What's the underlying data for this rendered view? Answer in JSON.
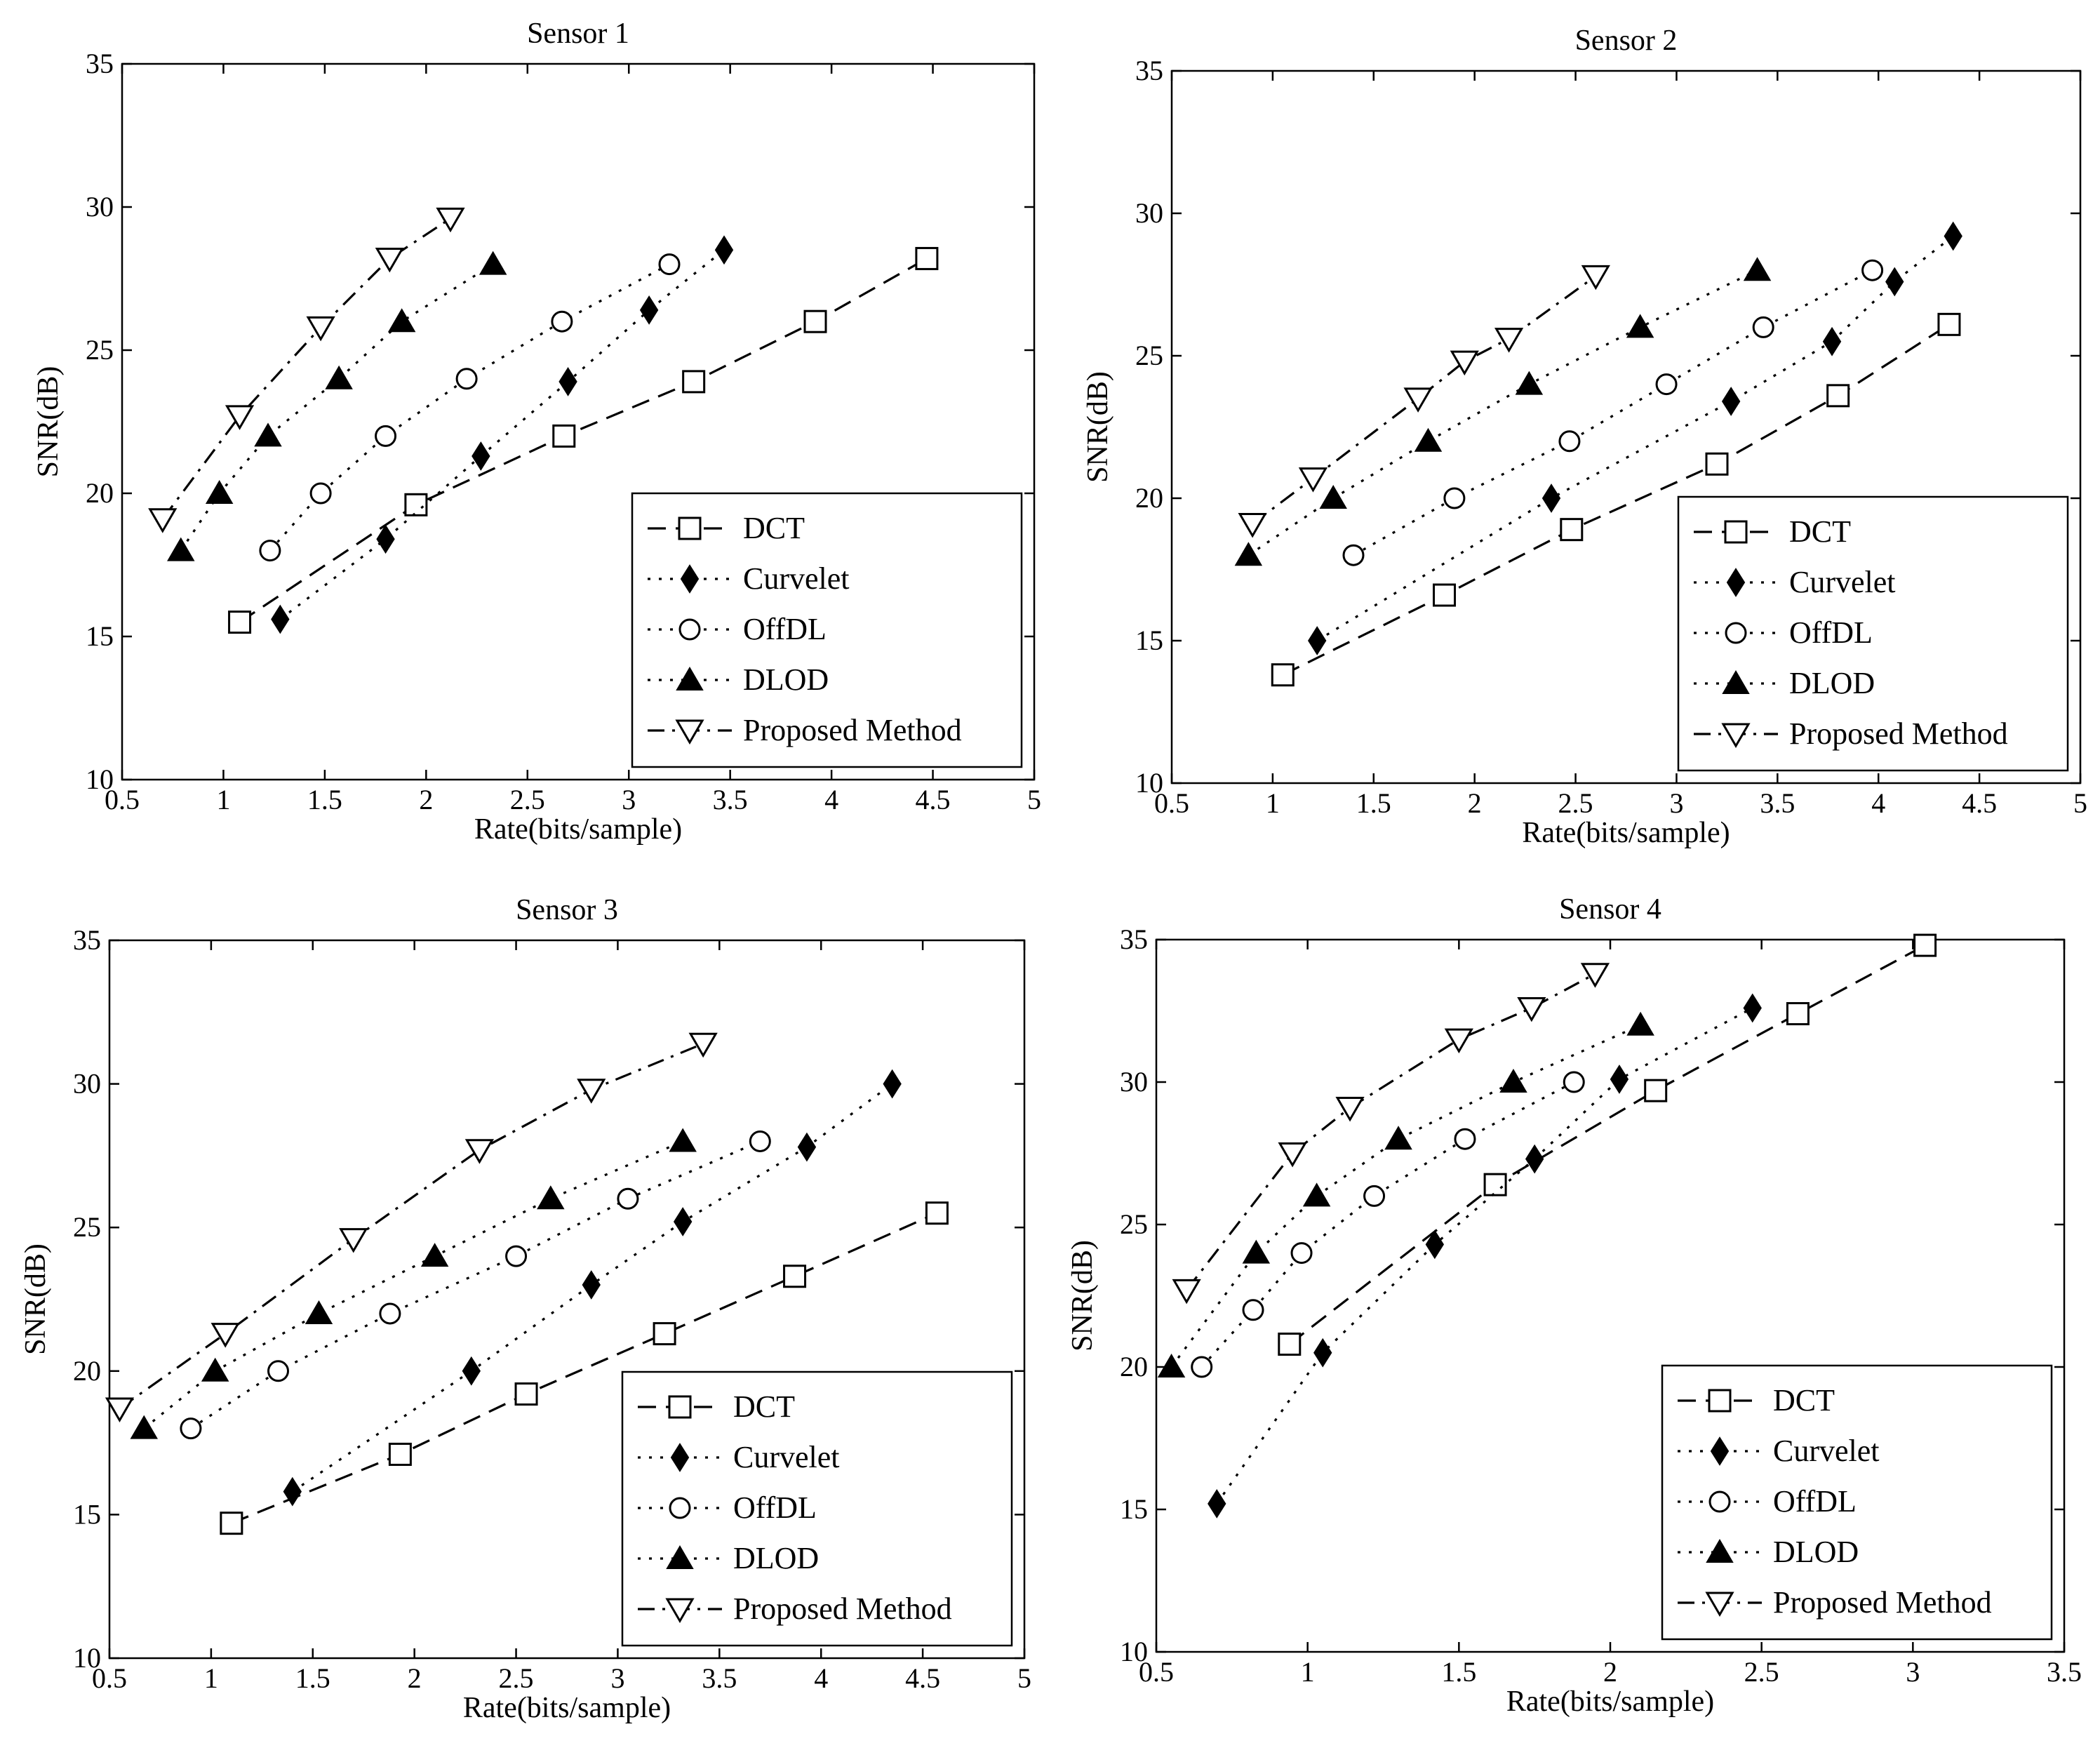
{
  "figure": {
    "layout": "2x2 grid of line charts"
  },
  "chart_data": [
    {
      "type": "line",
      "title": "Sensor 1",
      "xlabel": "Rate(bits/sample)",
      "ylabel": "SNR(dB)",
      "xlim": [
        0.5,
        5
      ],
      "ylim": [
        10,
        35
      ],
      "xticks": [
        0.5,
        1,
        1.5,
        2,
        2.5,
        3,
        3.5,
        4,
        4.5,
        5
      ],
      "xtick_labels": [
        "0.5",
        "1",
        "1.5",
        "2",
        "2.5",
        "3",
        "3.5",
        "4",
        "4.5",
        "5"
      ],
      "yticks": [
        10,
        15,
        20,
        25,
        30,
        35
      ],
      "ytick_labels": [
        "10",
        "15",
        "20",
        "25",
        "30",
        "35"
      ],
      "legend_position": "bottom-right",
      "series": [
        {
          "name": "DCT",
          "marker": "square",
          "line": "dash",
          "x": [
            1.08,
            1.95,
            2.68,
            3.32,
            3.92,
            4.47
          ],
          "y": [
            15.5,
            19.6,
            22.0,
            23.9,
            26.0,
            28.2
          ]
        },
        {
          "name": "Curvelet",
          "marker": "diamond-filled",
          "line": "dot",
          "x": [
            1.28,
            1.8,
            2.27,
            2.7,
            3.1,
            3.47
          ],
          "y": [
            15.6,
            18.4,
            21.3,
            23.9,
            26.4,
            28.5
          ]
        },
        {
          "name": "OffDL",
          "marker": "circle",
          "line": "dot",
          "x": [
            1.23,
            1.48,
            1.8,
            2.2,
            2.67,
            3.2
          ],
          "y": [
            18.0,
            20.0,
            22.0,
            24.0,
            26.0,
            28.0
          ]
        },
        {
          "name": "DLOD",
          "marker": "triangle-up-filled",
          "line": "dot",
          "x": [
            0.79,
            0.98,
            1.22,
            1.57,
            1.88,
            2.33
          ],
          "y": [
            18.0,
            20.0,
            22.0,
            24.0,
            26.0,
            28.0
          ]
        },
        {
          "name": "Proposed Method",
          "marker": "triangle-down",
          "line": "dashdot",
          "x": [
            0.7,
            1.08,
            1.48,
            1.82,
            2.12
          ],
          "y": [
            19.1,
            22.7,
            25.8,
            28.2,
            29.6
          ]
        }
      ]
    },
    {
      "type": "line",
      "title": "Sensor 2",
      "xlabel": "Rate(bits/sample)",
      "ylabel": "SNR(dB)",
      "xlim": [
        0.5,
        5
      ],
      "ylim": [
        10,
        35
      ],
      "xticks": [
        0.5,
        1,
        1.5,
        2,
        2.5,
        3,
        3.5,
        4,
        4.5,
        5
      ],
      "xtick_labels": [
        "0.5",
        "1",
        "1.5",
        "2",
        "2.5",
        "3",
        "3.5",
        "4",
        "4.5",
        "5"
      ],
      "yticks": [
        10,
        15,
        20,
        25,
        30,
        35
      ],
      "ytick_labels": [
        "10",
        "15",
        "20",
        "25",
        "30",
        "35"
      ],
      "legend_position": "bottom-right",
      "series": [
        {
          "name": "DCT",
          "marker": "square",
          "line": "dash",
          "x": [
            1.05,
            1.85,
            2.48,
            3.2,
            3.8,
            4.35
          ],
          "y": [
            13.8,
            16.6,
            18.9,
            21.2,
            23.6,
            26.1
          ]
        },
        {
          "name": "Curvelet",
          "marker": "diamond-filled",
          "line": "dot",
          "x": [
            1.22,
            2.38,
            3.27,
            3.77,
            4.08,
            4.37
          ],
          "y": [
            15.0,
            20.0,
            23.4,
            25.5,
            27.6,
            29.2
          ]
        },
        {
          "name": "OffDL",
          "marker": "circle",
          "line": "dot",
          "x": [
            1.4,
            1.9,
            2.47,
            2.95,
            3.43,
            3.97
          ],
          "y": [
            18.0,
            20.0,
            22.0,
            24.0,
            26.0,
            28.0
          ]
        },
        {
          "name": "DLOD",
          "marker": "triangle-up-filled",
          "line": "dot",
          "x": [
            0.88,
            1.3,
            1.77,
            2.27,
            2.82,
            3.4
          ],
          "y": [
            18.0,
            20.0,
            22.0,
            24.0,
            26.0,
            28.0
          ]
        },
        {
          "name": "Proposed Method",
          "marker": "triangle-down",
          "line": "dashdot",
          "x": [
            0.9,
            1.2,
            1.72,
            1.95,
            2.17,
            2.6
          ],
          "y": [
            19.1,
            20.7,
            23.5,
            24.8,
            25.6,
            27.8
          ]
        }
      ]
    },
    {
      "type": "line",
      "title": "Sensor 3",
      "xlabel": "Rate(bits/sample)",
      "ylabel": "SNR(dB)",
      "xlim": [
        0.5,
        5
      ],
      "ylim": [
        10,
        35
      ],
      "xticks": [
        0.5,
        1,
        1.5,
        2,
        2.5,
        3,
        3.5,
        4,
        4.5,
        5
      ],
      "xtick_labels": [
        "0.5",
        "1",
        "1.5",
        "2",
        "2.5",
        "3",
        "3.5",
        "4",
        "4.5",
        "5"
      ],
      "yticks": [
        10,
        15,
        20,
        25,
        30,
        35
      ],
      "ytick_labels": [
        "10",
        "15",
        "20",
        "25",
        "30",
        "35"
      ],
      "legend_position": "bottom-right",
      "series": [
        {
          "name": "DCT",
          "marker": "square",
          "line": "dash",
          "x": [
            1.1,
            1.93,
            2.55,
            3.23,
            3.87,
            4.57
          ],
          "y": [
            14.7,
            17.1,
            19.2,
            21.3,
            23.3,
            25.5
          ]
        },
        {
          "name": "Curvelet",
          "marker": "diamond-filled",
          "line": "dot",
          "x": [
            1.4,
            2.28,
            2.87,
            3.32,
            3.93,
            4.35
          ],
          "y": [
            15.8,
            20.0,
            23.0,
            25.2,
            27.8,
            30.0
          ]
        },
        {
          "name": "OffDL",
          "marker": "circle",
          "line": "dot",
          "x": [
            0.9,
            1.33,
            1.88,
            2.5,
            3.05,
            3.7
          ],
          "y": [
            18.0,
            20.0,
            22.0,
            24.0,
            26.0,
            28.0
          ]
        },
        {
          "name": "DLOD",
          "marker": "triangle-up-filled",
          "line": "dot",
          "x": [
            0.67,
            1.02,
            1.53,
            2.1,
            2.67,
            3.32
          ],
          "y": [
            18.0,
            20.0,
            22.0,
            24.0,
            26.0,
            28.0
          ]
        },
        {
          "name": "Proposed Method",
          "marker": "triangle-down",
          "line": "dashdot",
          "x": [
            0.55,
            1.07,
            1.7,
            2.32,
            2.87,
            3.42
          ],
          "y": [
            18.7,
            21.3,
            24.6,
            27.7,
            29.8,
            31.4
          ]
        }
      ]
    },
    {
      "type": "line",
      "title": "Sensor 4",
      "xlabel": "Rate(bits/sample)",
      "ylabel": "SNR(dB)",
      "xlim": [
        0.5,
        3.5
      ],
      "ylim": [
        10,
        35
      ],
      "xticks": [
        0.5,
        1,
        1.5,
        2,
        2.5,
        3,
        3.5
      ],
      "xtick_labels": [
        "0.5",
        "1",
        "1.5",
        "2",
        "2.5",
        "3",
        "3.5"
      ],
      "yticks": [
        10,
        15,
        20,
        25,
        30,
        35
      ],
      "ytick_labels": [
        "10",
        "15",
        "20",
        "25",
        "30",
        "35"
      ],
      "legend_position": "bottom-right",
      "series": [
        {
          "name": "DCT",
          "marker": "square",
          "line": "dash",
          "x": [
            0.94,
            1.62,
            2.15,
            2.62,
            3.04
          ],
          "y": [
            20.8,
            26.4,
            29.7,
            32.4,
            34.8
          ]
        },
        {
          "name": "Curvelet",
          "marker": "diamond-filled",
          "line": "dot",
          "x": [
            0.7,
            1.05,
            1.42,
            1.75,
            2.03,
            2.47
          ],
          "y": [
            15.2,
            20.5,
            24.3,
            27.3,
            30.1,
            32.6
          ]
        },
        {
          "name": "OffDL",
          "marker": "circle",
          "line": "dot",
          "x": [
            0.65,
            0.82,
            0.98,
            1.22,
            1.52,
            1.88
          ],
          "y": [
            20.0,
            22.0,
            24.0,
            26.0,
            28.0,
            30.0
          ]
        },
        {
          "name": "DLOD",
          "marker": "triangle-up-filled",
          "line": "dot",
          "x": [
            0.55,
            0.83,
            1.03,
            1.3,
            1.68,
            2.1
          ],
          "y": [
            20.0,
            24.0,
            26.0,
            28.0,
            30.0,
            32.0
          ]
        },
        {
          "name": "Proposed Method",
          "marker": "triangle-down",
          "line": "dashdot",
          "x": [
            0.6,
            0.95,
            1.14,
            1.5,
            1.74,
            1.95
          ],
          "y": [
            22.7,
            27.5,
            29.1,
            31.5,
            32.6,
            33.8
          ]
        }
      ]
    }
  ]
}
